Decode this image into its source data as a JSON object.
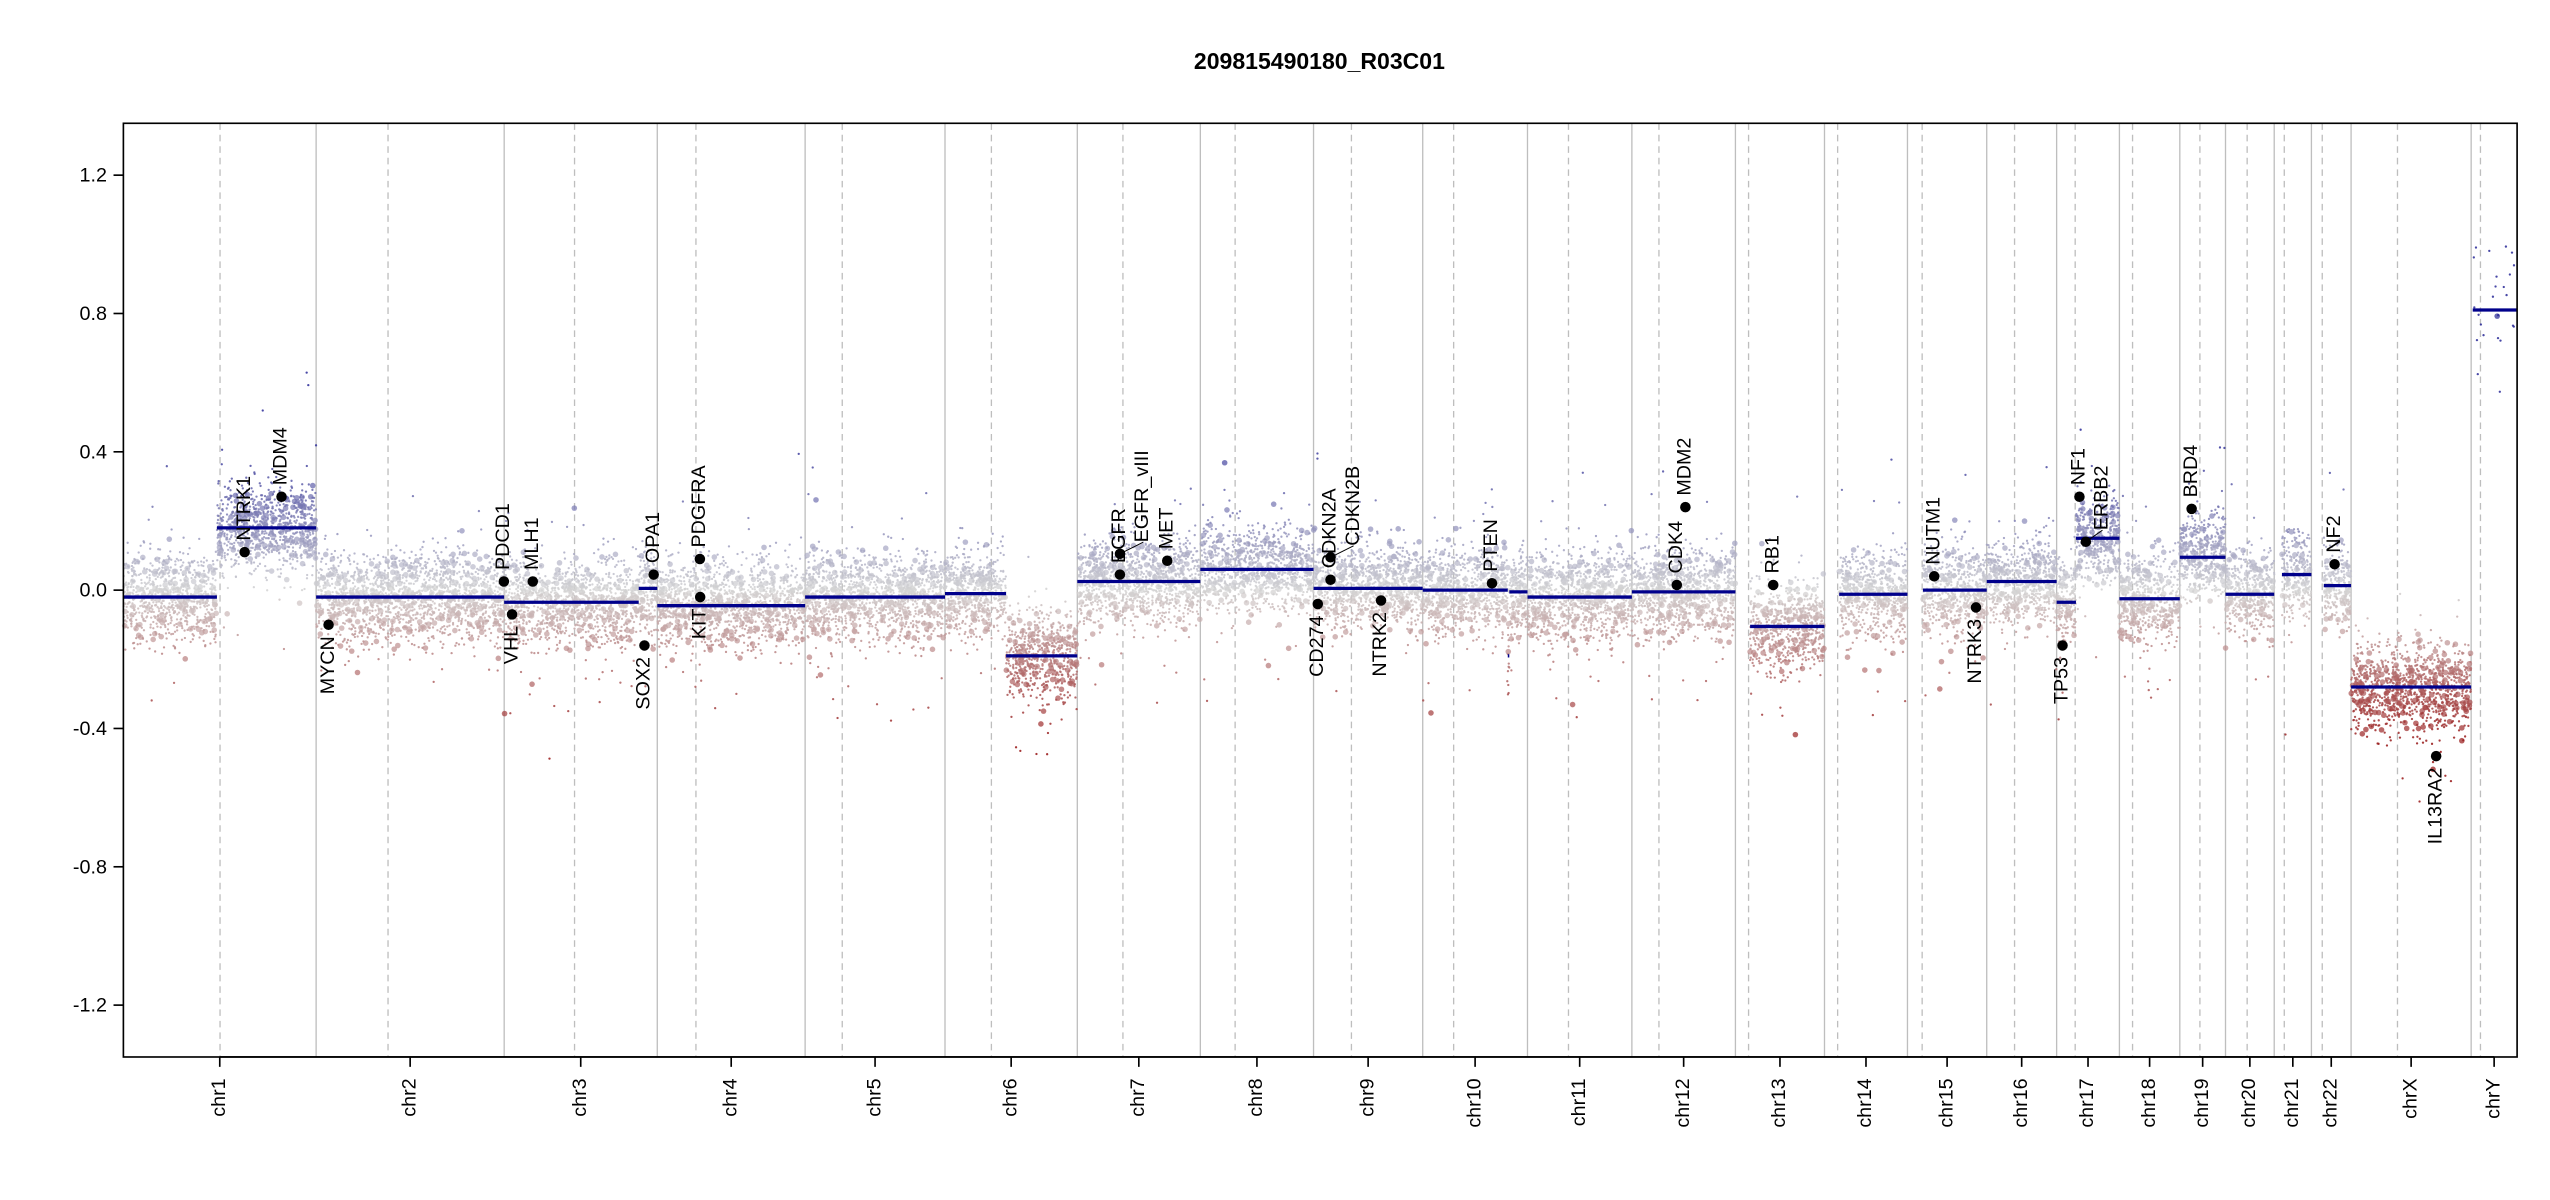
{
  "chart_data": {
    "type": "scatter",
    "title": "209815490180_R03C01",
    "xlabel": "",
    "ylabel": "",
    "ylim": [
      -1.35,
      1.35
    ],
    "yticks": [
      "-1.2",
      "-0.8",
      "-0.4",
      "0.0",
      "0.4",
      "0.8",
      "1.2"
    ],
    "grid": false,
    "colors": {
      "gain": "#00008B",
      "loss": "#8B0000",
      "neutral": "#D3D3D3",
      "segment": "#00008B",
      "gene": "#000000",
      "boundary": "#BEBEBE"
    },
    "chromosomes": [
      {
        "name": "chr1",
        "length": 249.25,
        "centromere": 125
      },
      {
        "name": "chr2",
        "length": 243.2,
        "centromere": 93
      },
      {
        "name": "chr3",
        "length": 198.0,
        "centromere": 91
      },
      {
        "name": "chr4",
        "length": 191.2,
        "centromere": 50
      },
      {
        "name": "chr5",
        "length": 180.9,
        "centromere": 48
      },
      {
        "name": "chr6",
        "length": 171.1,
        "centromere": 60
      },
      {
        "name": "chr7",
        "length": 159.1,
        "centromere": 59
      },
      {
        "name": "chr8",
        "length": 146.4,
        "centromere": 45
      },
      {
        "name": "chr9",
        "length": 141.2,
        "centromere": 49
      },
      {
        "name": "chr10",
        "length": 135.5,
        "centromere": 40
      },
      {
        "name": "chr11",
        "length": 135.0,
        "centromere": 53
      },
      {
        "name": "chr12",
        "length": 133.9,
        "centromere": 35
      },
      {
        "name": "chr13",
        "length": 115.2,
        "centromere": 17
      },
      {
        "name": "chr14",
        "length": 107.3,
        "centromere": 17
      },
      {
        "name": "chr15",
        "length": 102.5,
        "centromere": 19
      },
      {
        "name": "chr16",
        "length": 90.4,
        "centromere": 36
      },
      {
        "name": "chr17",
        "length": 81.2,
        "centromere": 24
      },
      {
        "name": "chr18",
        "length": 78.1,
        "centromere": 17
      },
      {
        "name": "chr19",
        "length": 59.1,
        "centromere": 26
      },
      {
        "name": "chr20",
        "length": 63.0,
        "centromere": 28
      },
      {
        "name": "chr21",
        "length": 48.1,
        "centromere": 13
      },
      {
        "name": "chr22",
        "length": 51.3,
        "centromere": 14
      },
      {
        "name": "chrX",
        "length": 155.3,
        "centromere": 60
      },
      {
        "name": "chrY",
        "length": 59.4,
        "centromere": 12
      }
    ],
    "segments": [
      {
        "chrom": "chr1",
        "start": 0,
        "end": 121,
        "value": -0.02
      },
      {
        "chrom": "chr1",
        "start": 121,
        "end": 249.25,
        "value": 0.18
      },
      {
        "chrom": "chr2",
        "start": 0,
        "end": 243.2,
        "value": -0.02
      },
      {
        "chrom": "chr3",
        "start": 0,
        "end": 174,
        "value": -0.035
      },
      {
        "chrom": "chr3",
        "start": 174,
        "end": 198,
        "value": 0.005
      },
      {
        "chrom": "chr4",
        "start": 0,
        "end": 191.2,
        "value": -0.045
      },
      {
        "chrom": "chr5",
        "start": 0,
        "end": 180.9,
        "value": -0.02
      },
      {
        "chrom": "chr6",
        "start": 0,
        "end": 79,
        "value": -0.01
      },
      {
        "chrom": "chr6",
        "start": 79,
        "end": 171.1,
        "value": -0.19
      },
      {
        "chrom": "chr7",
        "start": 0,
        "end": 159.1,
        "value": 0.025
      },
      {
        "chrom": "chr8",
        "start": 0,
        "end": 146.4,
        "value": 0.06
      },
      {
        "chrom": "chr9",
        "start": 0,
        "end": 141.2,
        "value": 0.005
      },
      {
        "chrom": "chr10",
        "start": 0,
        "end": 110,
        "value": 0.0
      },
      {
        "chrom": "chr10",
        "start": 110,
        "end": 112,
        "value": -0.19
      },
      {
        "chrom": "chr10",
        "start": 112,
        "end": 135.5,
        "value": -0.005
      },
      {
        "chrom": "chr11",
        "start": 0,
        "end": 135.0,
        "value": -0.02
      },
      {
        "chrom": "chr12",
        "start": 0,
        "end": 133.9,
        "value": -0.005
      },
      {
        "chrom": "chr13",
        "start": 19,
        "end": 115.2,
        "value": -0.105
      },
      {
        "chrom": "chr14",
        "start": 19,
        "end": 107.3,
        "value": -0.012
      },
      {
        "chrom": "chr15",
        "start": 20,
        "end": 102.5,
        "value": 0.0
      },
      {
        "chrom": "chr16",
        "start": 0,
        "end": 90.4,
        "value": 0.025
      },
      {
        "chrom": "chr17",
        "start": 0,
        "end": 25,
        "value": -0.035
      },
      {
        "chrom": "chr17",
        "start": 25,
        "end": 81.2,
        "value": 0.15
      },
      {
        "chrom": "chr18",
        "start": 0,
        "end": 78.1,
        "value": -0.025
      },
      {
        "chrom": "chr19",
        "start": 0,
        "end": 59.1,
        "value": 0.095
      },
      {
        "chrom": "chr20",
        "start": 0,
        "end": 63.0,
        "value": -0.012
      },
      {
        "chrom": "chr21",
        "start": 10,
        "end": 48.1,
        "value": 0.045
      },
      {
        "chrom": "chr22",
        "start": 16,
        "end": 51.3,
        "value": 0.013
      },
      {
        "chrom": "chrX",
        "start": 0,
        "end": 155.3,
        "value": -0.28
      },
      {
        "chrom": "chrY",
        "start": 2,
        "end": 59.4,
        "value": 0.81
      }
    ],
    "genes": [
      {
        "name": "NTRK1",
        "chrom": "chr1",
        "pos": 156.8,
        "value": 0.11,
        "label": "above"
      },
      {
        "name": "MDM4",
        "chrom": "chr1",
        "pos": 204.5,
        "value": 0.27,
        "label": "above"
      },
      {
        "name": "MYCN",
        "chrom": "chr2",
        "pos": 16.1,
        "value": -0.1,
        "label": "below"
      },
      {
        "name": "PDCD1",
        "chrom": "chr2",
        "pos": 242.8,
        "value": 0.025,
        "label": "above"
      },
      {
        "name": "VHL",
        "chrom": "chr3",
        "pos": 10.2,
        "value": -0.07,
        "label": "below"
      },
      {
        "name": "MLH1",
        "chrom": "chr3",
        "pos": 37.0,
        "value": 0.025,
        "label": "above"
      },
      {
        "name": "SOX2",
        "chrom": "chr3",
        "pos": 181.4,
        "value": -0.16,
        "label": "below"
      },
      {
        "name": "OPA1",
        "chrom": "chr3",
        "pos": 193.3,
        "value": 0.045,
        "label": "above"
      },
      {
        "name": "PDGFRA",
        "chrom": "chr4",
        "pos": 55.1,
        "value": 0.09,
        "label": "above"
      },
      {
        "name": "KIT",
        "chrom": "chr4",
        "pos": 55.5,
        "value": -0.02,
        "label": "below"
      },
      {
        "name": "EGFR",
        "chrom": "chr7",
        "pos": 55.1,
        "value": 0.045,
        "label": "above"
      },
      {
        "name": "EGFR_vIII",
        "chrom": "chr7",
        "pos": 55.2,
        "value": 0.105,
        "label": "above"
      },
      {
        "name": "MET",
        "chrom": "chr7",
        "pos": 116.3,
        "value": 0.085,
        "label": "above"
      },
      {
        "name": "CD274",
        "chrom": "chr9",
        "pos": 5.5,
        "value": -0.04,
        "label": "below"
      },
      {
        "name": "CDKN2A",
        "chrom": "chr9",
        "pos": 21.97,
        "value": 0.03,
        "label": "above"
      },
      {
        "name": "CDKN2B",
        "chrom": "chr9",
        "pos": 22.0,
        "value": 0.095,
        "label": "above"
      },
      {
        "name": "NTRK2",
        "chrom": "chr9",
        "pos": 87.3,
        "value": -0.03,
        "label": "below"
      },
      {
        "name": "PTEN",
        "chrom": "chr10",
        "pos": 89.6,
        "value": 0.02,
        "label": "above"
      },
      {
        "name": "CDK4",
        "chrom": "chr12",
        "pos": 58.1,
        "value": 0.015,
        "label": "above"
      },
      {
        "name": "MDM2",
        "chrom": "chr12",
        "pos": 69.2,
        "value": 0.24,
        "label": "above"
      },
      {
        "name": "RB1",
        "chrom": "chr13",
        "pos": 48.9,
        "value": 0.015,
        "label": "above"
      },
      {
        "name": "NUTM1",
        "chrom": "chr15",
        "pos": 34.6,
        "value": 0.04,
        "label": "above"
      },
      {
        "name": "NTRK3",
        "chrom": "chr15",
        "pos": 88.6,
        "value": -0.05,
        "label": "below"
      },
      {
        "name": "TP53",
        "chrom": "chr17",
        "pos": 7.6,
        "value": -0.16,
        "label": "below"
      },
      {
        "name": "NF1",
        "chrom": "chr17",
        "pos": 29.5,
        "value": 0.27,
        "label": "above"
      },
      {
        "name": "ERBB2",
        "chrom": "chr17",
        "pos": 37.8,
        "value": 0.14,
        "label": "above"
      },
      {
        "name": "BRD4",
        "chrom": "chr19",
        "pos": 15.3,
        "value": 0.235,
        "label": "above"
      },
      {
        "name": "NF2",
        "chrom": "chr22",
        "pos": 30.0,
        "value": 0.075,
        "label": "above"
      },
      {
        "name": "IL13RA2",
        "chrom": "chrX",
        "pos": 110.0,
        "value": -0.48,
        "label": "below"
      }
    ]
  }
}
